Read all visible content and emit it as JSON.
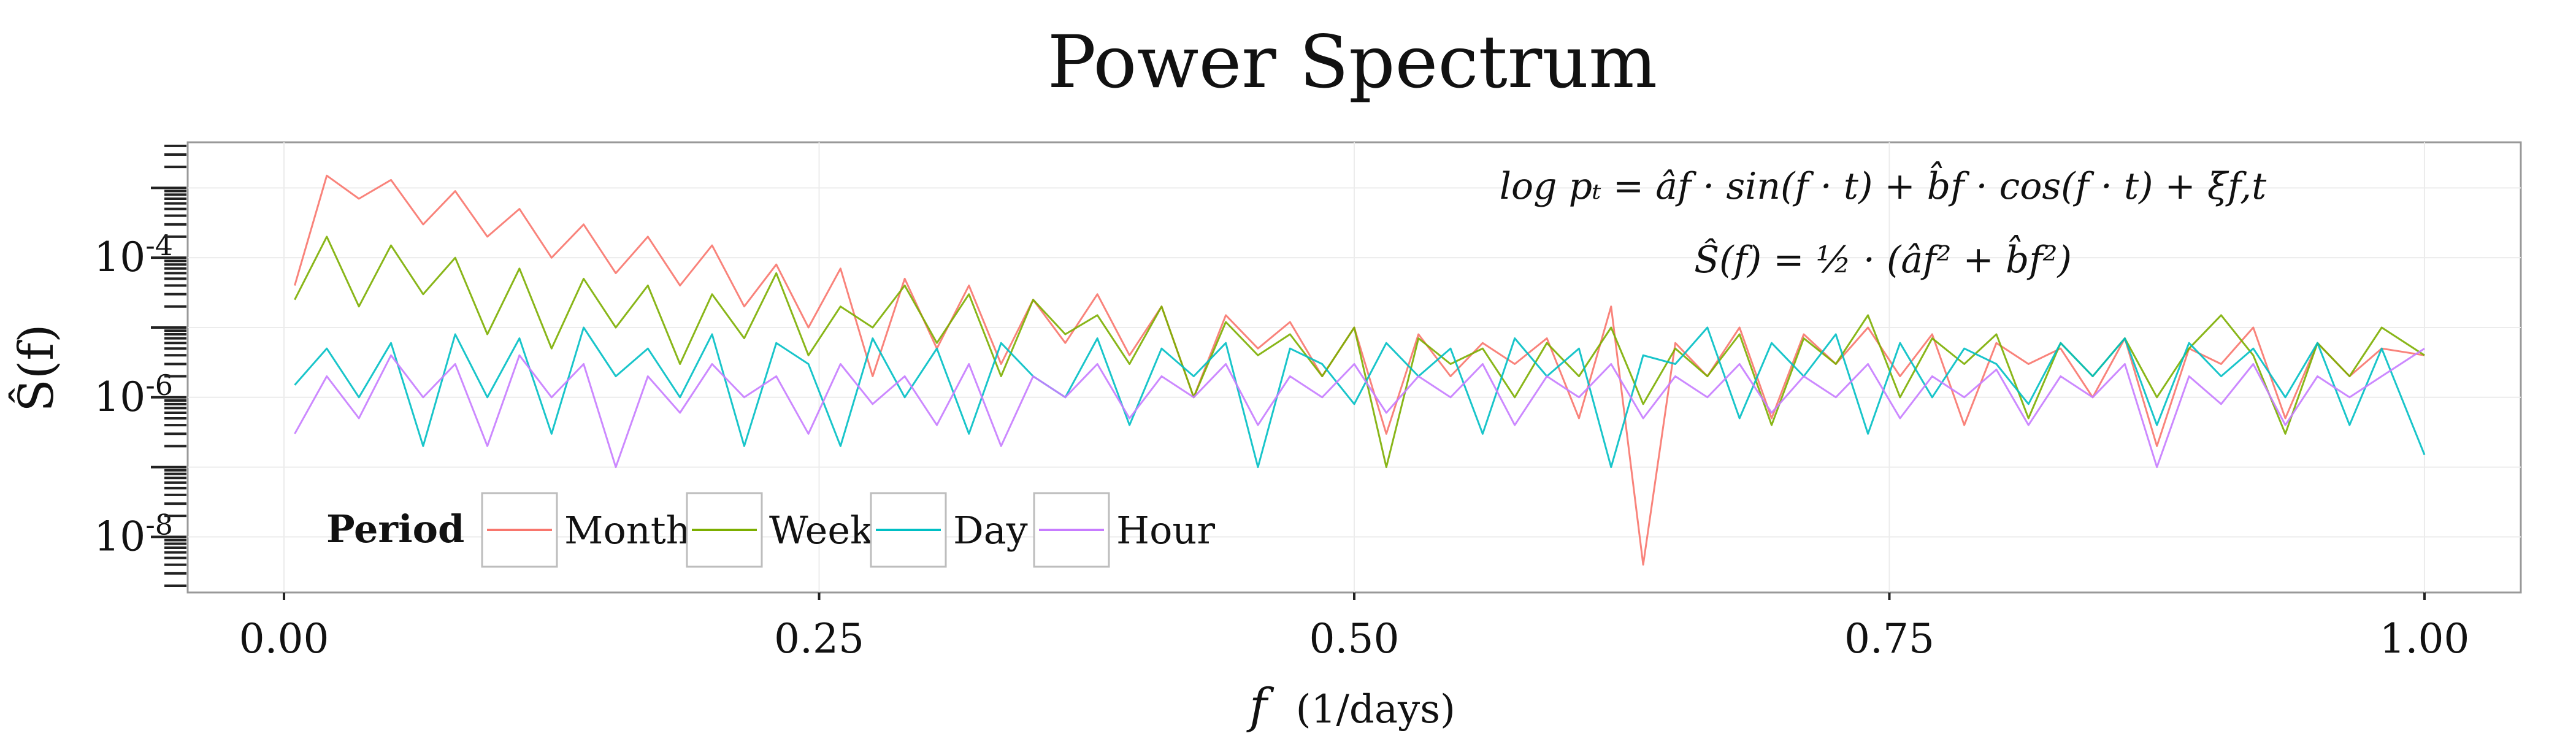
{
  "chart_data": {
    "type": "line",
    "title": "Power Spectrum",
    "xlabel": "f (1/days)",
    "xlabel_symbol": "f",
    "xlabel_unit": "(1/days)",
    "ylabel": "Ŝ(f)",
    "y_scale": "log10",
    "xlim": [
      -0.045,
      1.045
    ],
    "ylim": [
      1.6e-09,
      0.0045
    ],
    "x_ticks": [
      {
        "value": 0.0,
        "label": "0.00"
      },
      {
        "value": 0.25,
        "label": "0.25"
      },
      {
        "value": 0.5,
        "label": "0.50"
      },
      {
        "value": 0.75,
        "label": "0.75"
      },
      {
        "value": 1.0,
        "label": "1.00"
      }
    ],
    "y_ticks": [
      {
        "value": 0.0001,
        "base": "10",
        "exp": "-4"
      },
      {
        "value": 1e-06,
        "base": "10",
        "exp": "-6"
      },
      {
        "value": 1e-08,
        "base": "10",
        "exp": "-8"
      }
    ],
    "grid": true,
    "annotations": [
      "log pₜ = âf · sin(f · t) + b̂f · cos(f · t) + ξf,t",
      "Ŝ(f) = ½ · (âf² + b̂f²)"
    ],
    "legend": {
      "title": "Period",
      "position": "bottom-left"
    },
    "series": [
      {
        "name": "Month",
        "color": "#F8766D",
        "x": [
          0.005,
          0.02,
          0.035,
          0.05,
          0.065,
          0.08,
          0.095,
          0.11,
          0.125,
          0.14,
          0.155,
          0.17,
          0.185,
          0.2,
          0.215,
          0.23,
          0.245,
          0.26,
          0.275,
          0.29,
          0.305,
          0.32,
          0.335,
          0.35,
          0.365,
          0.38,
          0.395,
          0.41,
          0.425,
          0.44,
          0.455,
          0.47,
          0.485,
          0.5,
          0.515,
          0.53,
          0.545,
          0.56,
          0.575,
          0.59,
          0.605,
          0.62,
          0.635,
          0.65,
          0.665,
          0.68,
          0.695,
          0.71,
          0.725,
          0.74,
          0.755,
          0.77,
          0.785,
          0.8,
          0.815,
          0.83,
          0.845,
          0.86,
          0.875,
          0.89,
          0.905,
          0.92,
          0.935,
          0.95,
          0.965,
          0.98,
          1.0
        ],
        "values": [
          4e-05,
          0.0015,
          0.0007,
          0.0013,
          0.0003,
          0.0009,
          0.0002,
          0.0005,
          0.0001,
          0.0003,
          6e-05,
          0.0002,
          4e-05,
          0.00015,
          2e-05,
          8e-05,
          1e-05,
          7e-05,
          2e-06,
          5e-05,
          5e-06,
          4e-05,
          3e-06,
          2.5e-05,
          6e-06,
          3e-05,
          4e-06,
          2e-05,
          1e-06,
          1.5e-05,
          5e-06,
          1.2e-05,
          2e-06,
          1e-05,
          3e-07,
          8e-06,
          2e-06,
          6e-06,
          3e-06,
          7e-06,
          5e-07,
          2e-05,
          4e-09,
          6e-06,
          2e-06,
          1e-05,
          5e-07,
          8e-06,
          3e-06,
          1e-05,
          2e-06,
          8e-06,
          4e-07,
          6e-06,
          3e-06,
          5e-06,
          1e-06,
          7e-06,
          2e-07,
          5e-06,
          3e-06,
          1e-05,
          5e-07,
          6e-06,
          2e-06,
          5e-06,
          4e-06
        ]
      },
      {
        "name": "Week",
        "color": "#7CAE00",
        "x": [
          0.005,
          0.02,
          0.035,
          0.05,
          0.065,
          0.08,
          0.095,
          0.11,
          0.125,
          0.14,
          0.155,
          0.17,
          0.185,
          0.2,
          0.215,
          0.23,
          0.245,
          0.26,
          0.275,
          0.29,
          0.305,
          0.32,
          0.335,
          0.35,
          0.365,
          0.38,
          0.395,
          0.41,
          0.425,
          0.44,
          0.455,
          0.47,
          0.485,
          0.5,
          0.515,
          0.53,
          0.545,
          0.56,
          0.575,
          0.59,
          0.605,
          0.62,
          0.635,
          0.65,
          0.665,
          0.68,
          0.695,
          0.71,
          0.725,
          0.74,
          0.755,
          0.77,
          0.785,
          0.8,
          0.815,
          0.83,
          0.845,
          0.86,
          0.875,
          0.89,
          0.905,
          0.92,
          0.935,
          0.95,
          0.965,
          0.98,
          1.0
        ],
        "values": [
          2.5e-05,
          0.0002,
          2e-05,
          0.00015,
          3e-05,
          0.0001,
          8e-06,
          7e-05,
          5e-06,
          5e-05,
          1e-05,
          4e-05,
          3e-06,
          3e-05,
          7e-06,
          6e-05,
          4e-06,
          2e-05,
          1e-05,
          4e-05,
          6e-06,
          3e-05,
          2e-06,
          2.5e-05,
          8e-06,
          1.5e-05,
          3e-06,
          2e-05,
          1e-06,
          1.2e-05,
          4e-06,
          8e-06,
          2e-06,
          1e-05,
          1e-07,
          7e-06,
          3e-06,
          5e-06,
          1e-06,
          6e-06,
          2e-06,
          1e-05,
          8e-07,
          5e-06,
          2e-06,
          8e-06,
          4e-07,
          7e-06,
          3e-06,
          1.5e-05,
          1e-06,
          7e-06,
          3e-06,
          8e-06,
          5e-07,
          6e-06,
          2e-06,
          7e-06,
          1e-06,
          5e-06,
          1.5e-05,
          4e-06,
          3e-07,
          6e-06,
          2e-06,
          1e-05,
          4e-06
        ]
      },
      {
        "name": "Day",
        "color": "#00BFC4",
        "x": [
          0.005,
          0.02,
          0.035,
          0.05,
          0.065,
          0.08,
          0.095,
          0.11,
          0.125,
          0.14,
          0.155,
          0.17,
          0.185,
          0.2,
          0.215,
          0.23,
          0.245,
          0.26,
          0.275,
          0.29,
          0.305,
          0.32,
          0.335,
          0.35,
          0.365,
          0.38,
          0.395,
          0.41,
          0.425,
          0.44,
          0.455,
          0.47,
          0.485,
          0.5,
          0.515,
          0.53,
          0.545,
          0.56,
          0.575,
          0.59,
          0.605,
          0.62,
          0.635,
          0.65,
          0.665,
          0.68,
          0.695,
          0.71,
          0.725,
          0.74,
          0.755,
          0.77,
          0.785,
          0.8,
          0.815,
          0.83,
          0.845,
          0.86,
          0.875,
          0.89,
          0.905,
          0.92,
          0.935,
          0.95,
          0.965,
          0.98,
          1.0
        ],
        "values": [
          1.5e-06,
          5e-06,
          1e-06,
          6e-06,
          2e-07,
          8e-06,
          1e-06,
          7e-06,
          3e-07,
          1e-05,
          2e-06,
          5e-06,
          1e-06,
          8e-06,
          2e-07,
          6e-06,
          3e-06,
          2e-07,
          7e-06,
          1e-06,
          5e-06,
          3e-07,
          6e-06,
          2e-06,
          1e-06,
          7e-06,
          4e-07,
          5e-06,
          2e-06,
          6e-06,
          1e-07,
          5e-06,
          3e-06,
          8e-07,
          6e-06,
          2e-06,
          5e-06,
          3e-07,
          7e-06,
          2e-06,
          5e-06,
          1e-07,
          4e-06,
          3e-06,
          1e-05,
          5e-07,
          6e-06,
          2e-06,
          8e-06,
          3e-07,
          6e-06,
          1e-06,
          5e-06,
          3e-06,
          8e-07,
          6e-06,
          2e-06,
          7e-06,
          4e-07,
          6e-06,
          2e-06,
          5e-06,
          1e-06,
          6e-06,
          4e-07,
          5e-06,
          1.5e-07
        ]
      },
      {
        "name": "Hour",
        "color": "#C77CFF",
        "x": [
          0.005,
          0.02,
          0.035,
          0.05,
          0.065,
          0.08,
          0.095,
          0.11,
          0.125,
          0.14,
          0.155,
          0.17,
          0.185,
          0.2,
          0.215,
          0.23,
          0.245,
          0.26,
          0.275,
          0.29,
          0.305,
          0.32,
          0.335,
          0.35,
          0.365,
          0.38,
          0.395,
          0.41,
          0.425,
          0.44,
          0.455,
          0.47,
          0.485,
          0.5,
          0.515,
          0.53,
          0.545,
          0.56,
          0.575,
          0.59,
          0.605,
          0.62,
          0.635,
          0.65,
          0.665,
          0.68,
          0.695,
          0.71,
          0.725,
          0.74,
          0.755,
          0.77,
          0.785,
          0.8,
          0.815,
          0.83,
          0.845,
          0.86,
          0.875,
          0.89,
          0.905,
          0.92,
          0.935,
          0.95,
          0.965,
          0.98,
          1.0
        ],
        "values": [
          3e-07,
          2e-06,
          5e-07,
          4e-06,
          1e-06,
          3e-06,
          2e-07,
          4e-06,
          1e-06,
          3e-06,
          1e-07,
          2e-06,
          6e-07,
          3e-06,
          1e-06,
          2e-06,
          3e-07,
          3e-06,
          8e-07,
          2e-06,
          4e-07,
          3e-06,
          2e-07,
          2e-06,
          1e-06,
          3e-06,
          5e-07,
          2e-06,
          1e-06,
          3e-06,
          4e-07,
          2e-06,
          1e-06,
          3e-06,
          6e-07,
          2e-06,
          1e-06,
          3e-06,
          4e-07,
          2e-06,
          1e-06,
          3e-06,
          5e-07,
          2e-06,
          1e-06,
          3e-06,
          6e-07,
          2e-06,
          1e-06,
          3e-06,
          5e-07,
          2e-06,
          1e-06,
          2.5e-06,
          4e-07,
          2e-06,
          1e-06,
          3e-06,
          1e-07,
          2e-06,
          8e-07,
          3e-06,
          4e-07,
          2e-06,
          1e-06,
          2e-06,
          5e-06
        ]
      }
    ]
  }
}
